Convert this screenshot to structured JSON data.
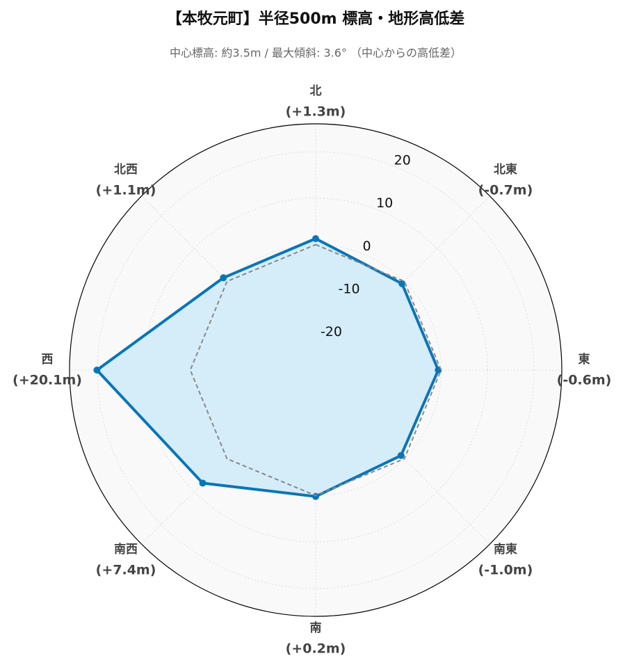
{
  "chart_data": {
    "type": "radar",
    "title": "【本牧元町】半径500m 標高・地形高低差",
    "subtitle": "中心標高: 約3.5m / 最大傾斜: 3.6° （中心からの高低差）",
    "categories": [
      "北",
      "北東",
      "東",
      "南東",
      "南",
      "南西",
      "西",
      "北西"
    ],
    "series": [
      {
        "color": "#0a75b8",
        "fill": "#d4edf9",
        "values": [
          1.3,
          -0.7,
          -0.6,
          -1.0,
          0.2,
          7.4,
          20.1,
          1.1
        ],
        "value_labels": [
          "(+1.3m)",
          "(-0.7m)",
          "(-0.6m)",
          "(-1.0m)",
          "(+0.2m)",
          "(+7.4m)",
          "(+20.1m)",
          "(+1.1m)"
        ]
      },
      {
        "color": "#888888",
        "dashed": true,
        "values": [
          0,
          0,
          0,
          0,
          0,
          0,
          0,
          0
        ]
      }
    ],
    "ylim": [
      -27,
      26
    ],
    "yticks": [
      -20,
      -10,
      0,
      10,
      20
    ],
    "grid": true
  }
}
